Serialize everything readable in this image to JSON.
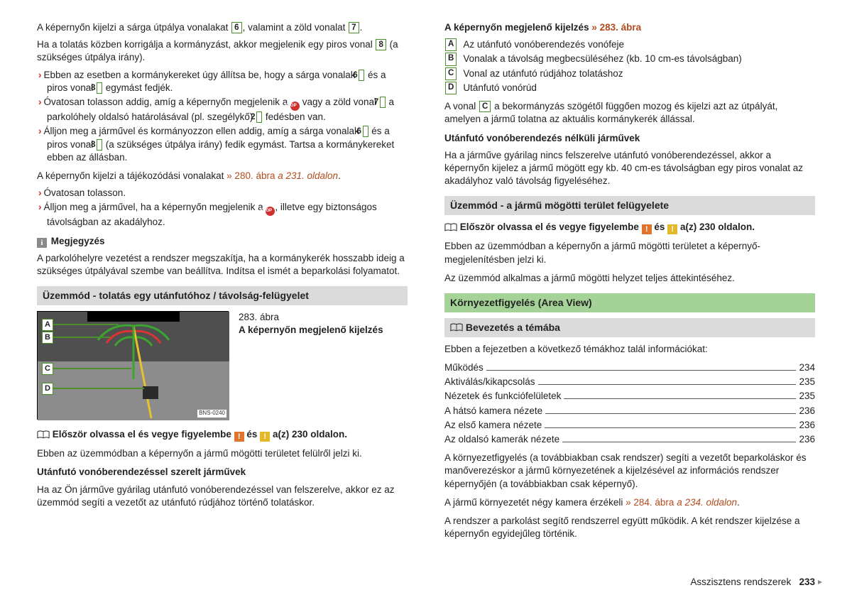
{
  "left": {
    "p1_a": "A képernyőn kijelzi a sárga útpálya vonalakat ",
    "p1_b": ", valamint a zöld vonalat ",
    "p1_end": ".",
    "p2_a": "Ha a tolatás közben korrigálja a kormányzást, akkor megjelenik egy piros vonal ",
    "p2_b": " (a szükséges útpálya irány).",
    "b1_a": "Ebben az esetben a kormánykereket úgy állítsa be, hogy a sárga vonalak ",
    "b1_b": " és a piros vonal ",
    "b1_c": " egymást fedjék.",
    "b2_a": "Óvatosan tolasson addig, amíg a képernyőn megjelenik a ",
    "b2_b": " vagy a zöld vonal ",
    "b2_c": " a parkolóhely oldalsó határolásával (pl. szegélykő) ",
    "b2_d": " fedésben van.",
    "b3_a": "Álljon meg a járművel és kormányozzon ellen addig, amíg a sárga vonalak ",
    "b3_b": " és a piros vonal ",
    "b3_c": " (a szükséges útpálya irány) fedik egymást. Tartsa a kormánykereket ebben az állásban.",
    "p3_a": "A képernyőn kijelzi a tájékozódási vonalakat ",
    "p3_ref1": "» 280. ábra",
    "p3_ref2": " a 231. oldalon",
    "p3_end": ".",
    "b4": "Óvatosan tolasson.",
    "b5_a": "Álljon meg a járművel, ha a képernyőn megjelenik a ",
    "b5_b": ", illetve egy biztonságos távolságban az akadályhoz.",
    "note_h": "Megjegyzés",
    "note_p": "A parkolóhelyre vezetést a rendszer megszakítja, ha a kormánykerék hosszabb ideig a szükséges útpályával szembe van beállítva. Indítsa el ismét a beparkolási folyamatot.",
    "bar1": "Üzemmód - tolatás egy utánfutóhoz / távolság-felügyelet",
    "fig_num": "283. ábra",
    "fig_cap": "A képernyőn megjelenő kijelzés",
    "bns": "BNS-0240",
    "read_a": "Először olvassa el és vegye figyelembe ",
    "read_b": " és ",
    "read_c": " a(z) 230 oldalon.",
    "p4": "Ebben az üzemmódban a képernyőn a jármű mögötti területet felülről jelzi ki.",
    "sub_h": "Utánfutó vonóberendezéssel szerelt járművek",
    "sub_p": "Ha az Ön járműve gyárilag utánfutó vonóberendezéssel van felszerelve, akkor ez az üzemmód segíti a vezetőt az utánfutó rúdjához történő tolatáskor.",
    "boxes": {
      "six": "6",
      "seven": "7",
      "eight": "8",
      "two": "2"
    },
    "figletters": {
      "A": "A",
      "B": "B",
      "C": "C",
      "D": "D"
    }
  },
  "right": {
    "h1": "A képernyőn megjelenő kijelzés ",
    "h1_ref": "» 283. ábra",
    "legend": [
      {
        "k": "A",
        "t": "Az utánfutó vonóberendezés vonófeje"
      },
      {
        "k": "B",
        "t": "Vonalak a távolság megbecsüléséhez (kb. 10 cm-es távolságban)"
      },
      {
        "k": "C",
        "t": "Vonal az utánfutó rúdjához tolatáshoz"
      },
      {
        "k": "D",
        "t": "Utánfutó vonórúd"
      }
    ],
    "p1_a": "A vonal ",
    "p1_b": " a bekormányzás szögétől függően mozog és kijelzi azt az útpályát, amelyen a jármű tolatna az aktuális kormánykerék állással.",
    "sub_h": "Utánfutó vonóberendezés nélküli járművek",
    "sub_p": "Ha a járműve gyárilag nincs felszerelve utánfutó vonóberendezéssel, akkor a képernyőn kijelez a jármű mögött egy kb. 40 cm-es távolságban egy piros vonalat az akadályhoz való távolság figyeléséhez.",
    "bar1": "Üzemmód - a jármű mögötti terület felügyelete",
    "read_a": "Először olvassa el és vegye figyelembe ",
    "read_b": " és ",
    "read_c": " a(z) 230 oldalon.",
    "p2": "Ebben az üzemmódban a képernyőn a jármű mögötti területet a képernyő-megjelenítésben jelzi ki.",
    "p3": "Az üzemmód alkalmas a jármű mögötti helyzet teljes áttekintéséhez.",
    "bar2": "Környezetfigyelés (Area View)",
    "bar3": "Bevezetés a témába",
    "p4": "Ebben a fejezetben a következő témákhoz talál információkat:",
    "toc": [
      {
        "l": "Működés",
        "p": "234"
      },
      {
        "l": "Aktiválás/kikapcsolás",
        "p": "235"
      },
      {
        "l": "Nézetek és funkciófelületek",
        "p": "235"
      },
      {
        "l": "A hátsó kamera nézete",
        "p": "236"
      },
      {
        "l": "Az első kamera nézete",
        "p": "236"
      },
      {
        "l": "Az oldalsó kamerák nézete",
        "p": "236"
      }
    ],
    "p5": "A környezetfigyelés (a továbbiakban csak rendszer) segíti a vezetőt beparkoláskor és manőverezéskor a jármű környezetének a kijelzésével az információs rendszer képernyőjén (a továbbiakban csak képernyő).",
    "p6_a": "A jármű környezetét négy kamera érzékeli ",
    "p6_ref1": "» 284. ábra",
    "p6_ref2": " a 234. oldalon",
    "p6_end": ".",
    "p7": "A rendszer a parkolást segítő rendszerrel együtt működik. A két rendszer kijelzése a képernyőn egyidejűleg történik.",
    "cbox": "C"
  },
  "footer": {
    "chapter": "Asszisztens rendszerek",
    "page": "233",
    "cont": "▸"
  },
  "icons": {
    "stop": "STOP",
    "warn": "!"
  }
}
